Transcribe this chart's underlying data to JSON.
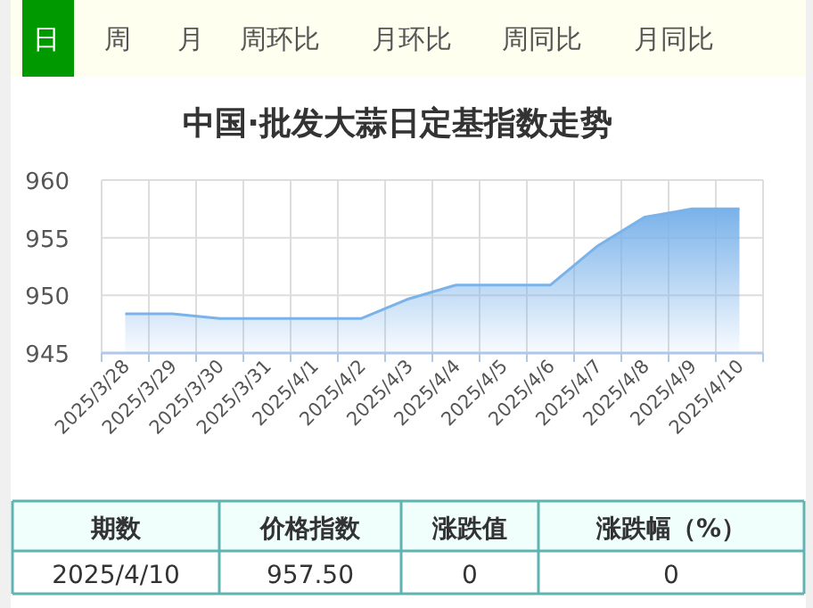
{
  "chart_data": {
    "type": "area",
    "title": "中国·批发大蒜日定基指数走势",
    "categories": [
      "2025/3/28",
      "2025/3/29",
      "2025/3/30",
      "2025/3/31",
      "2025/4/1",
      "2025/4/2",
      "2025/4/3",
      "2025/4/4",
      "2025/4/5",
      "2025/4/6",
      "2025/4/7",
      "2025/4/8",
      "2025/4/9",
      "2025/4/10"
    ],
    "series": [
      {
        "color": "#7ab2ea",
        "values": [
          948.4,
          948.4,
          948.0,
          948.0,
          948.0,
          948.0,
          949.7,
          950.9,
          950.9,
          950.9,
          954.3,
          956.8,
          957.5,
          957.5
        ]
      }
    ],
    "ylim": [
      945,
      960
    ],
    "yticks": [
      945,
      950,
      955,
      960
    ],
    "grid": true,
    "marker": "none",
    "annotations": [
      "日",
      "周",
      "月",
      "周环比",
      "月环比",
      "周同比",
      "月同比",
      "期数",
      "价格指数",
      "涨跌值",
      "涨跌幅（%）",
      "2025/4/10",
      "957.50",
      "0",
      "0"
    ]
  }
}
